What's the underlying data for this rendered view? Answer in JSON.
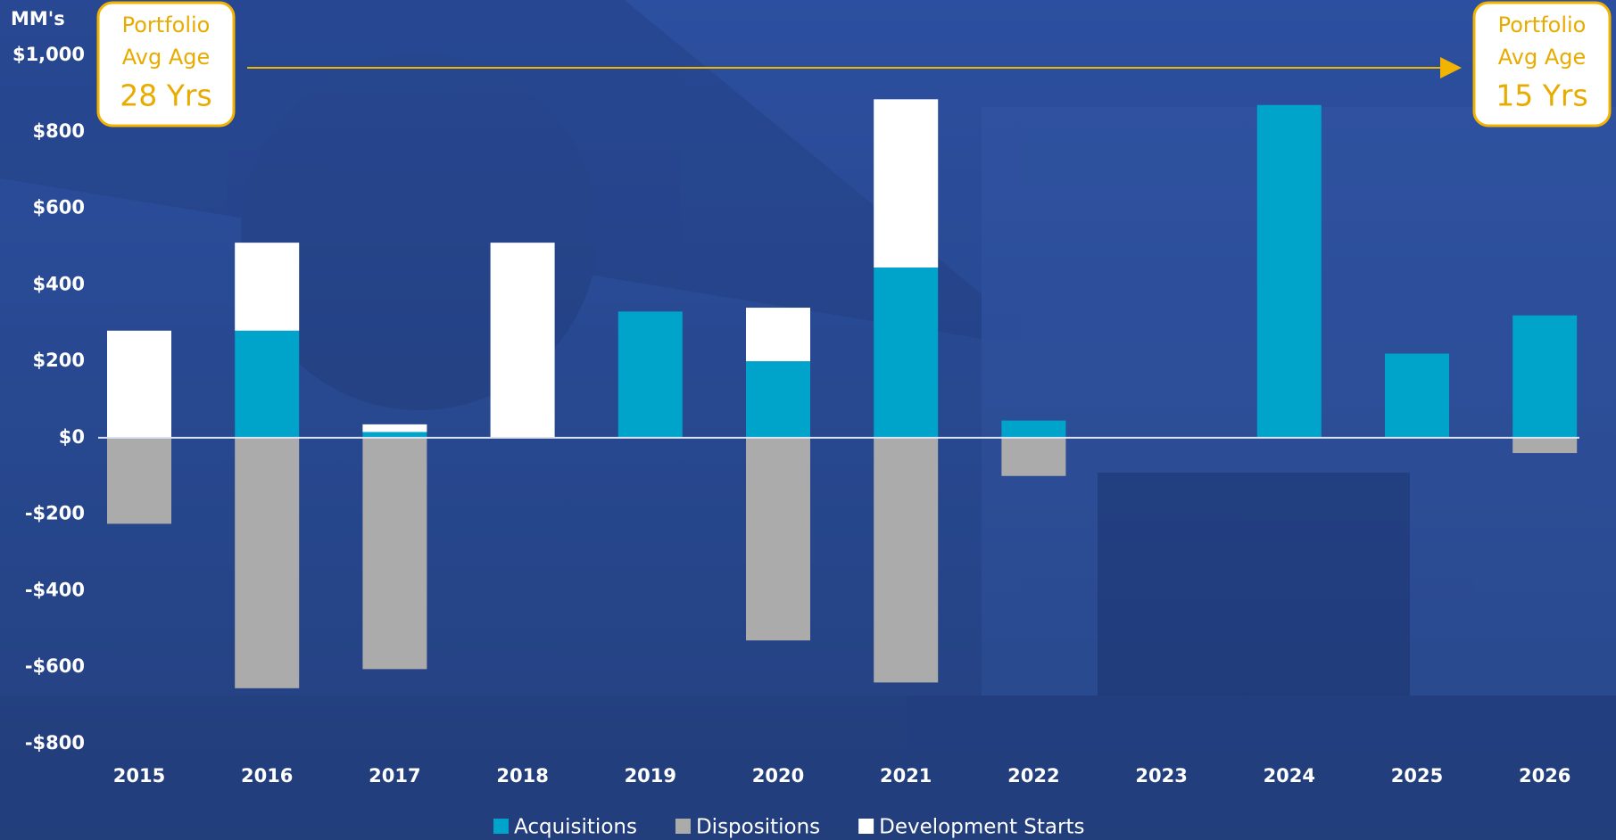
{
  "chart_data": {
    "type": "bar",
    "stacked": true,
    "y_label": "MM's",
    "categories": [
      "2015",
      "2016",
      "2017",
      "2018",
      "2019",
      "2020",
      "2021",
      "2022",
      "2023",
      "2024",
      "2025",
      "2026"
    ],
    "series": [
      {
        "name": "Acquisitions",
        "color": "#00a3c9",
        "values": [
          0,
          280,
          15,
          0,
          330,
          200,
          445,
          45,
          0,
          870,
          220,
          320
        ]
      },
      {
        "name": "Dispositions",
        "color": "#ababab",
        "values": [
          -225,
          -655,
          -605,
          0,
          0,
          -530,
          -640,
          -100,
          0,
          0,
          0,
          -40
        ]
      },
      {
        "name": "Development Starts",
        "color": "#ffffff",
        "values": [
          280,
          230,
          20,
          510,
          0,
          140,
          440,
          0,
          0,
          0,
          0,
          0
        ]
      }
    ],
    "ylim": [
      -800,
      1000
    ],
    "yticks": [
      {
        "value": 1000,
        "label": "$1,000"
      },
      {
        "value": 800,
        "label": "$800"
      },
      {
        "value": 600,
        "label": "$600"
      },
      {
        "value": 400,
        "label": "$400"
      },
      {
        "value": 200,
        "label": "$200"
      },
      {
        "value": 0,
        "label": "$0"
      },
      {
        "value": -200,
        "label": "-$200"
      },
      {
        "value": -400,
        "label": "-$400"
      },
      {
        "value": -600,
        "label": "-$600"
      },
      {
        "value": -800,
        "label": "-$800"
      }
    ],
    "legend": "bottom",
    "annotations": [
      {
        "lines": [
          "Portfolio",
          "Avg Age",
          "28 Yrs"
        ]
      },
      {
        "lines": [
          "Portfolio",
          "Avg Age",
          "15 Yrs"
        ]
      }
    ]
  }
}
